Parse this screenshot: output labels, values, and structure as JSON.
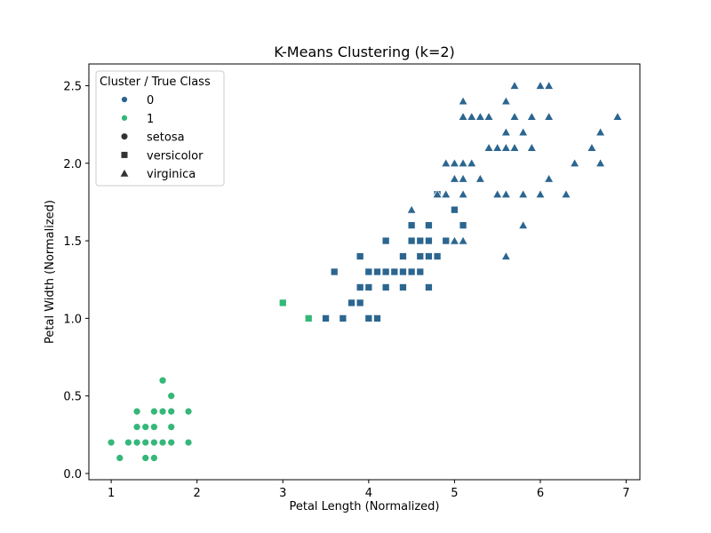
{
  "chart_data": {
    "type": "scatter",
    "title": "K-Means Clustering (k=2)",
    "xlabel": "Petal Length (Normalized)",
    "ylabel": "Petal Width (Normalized)",
    "xlim": [
      0.74,
      7.16
    ],
    "ylim": [
      -0.04,
      2.64
    ],
    "x_ticks": [
      1,
      2,
      3,
      4,
      5,
      6,
      7
    ],
    "y_ticks": [
      0.0,
      0.5,
      1.0,
      1.5,
      2.0,
      2.5
    ],
    "y_tick_labels": [
      "0.0",
      "0.5",
      "1.0",
      "1.5",
      "2.0",
      "2.5"
    ],
    "grid": false,
    "colors": {
      "cluster_0": "#2c6690",
      "cluster_1": "#35b779",
      "marker_key": "#333333"
    },
    "legend": {
      "title": "Cluster / True Class",
      "placement": "top-left",
      "entries": [
        {
          "label": "0",
          "kind": "hue",
          "cluster": 0
        },
        {
          "label": "1",
          "kind": "hue",
          "cluster": 1
        },
        {
          "label": "setosa",
          "kind": "marker",
          "marker": "circle"
        },
        {
          "label": "versicolor",
          "kind": "marker",
          "marker": "square"
        },
        {
          "label": "virginica",
          "kind": "marker",
          "marker": "triangle"
        }
      ]
    },
    "series": [
      {
        "class": "setosa",
        "cluster": 1,
        "marker": "circle",
        "points": [
          [
            1.0,
            0.2
          ],
          [
            1.1,
            0.1
          ],
          [
            1.2,
            0.2
          ],
          [
            1.3,
            0.2
          ],
          [
            1.3,
            0.3
          ],
          [
            1.3,
            0.4
          ],
          [
            1.4,
            0.1
          ],
          [
            1.4,
            0.2
          ],
          [
            1.4,
            0.3
          ],
          [
            1.5,
            0.1
          ],
          [
            1.5,
            0.2
          ],
          [
            1.5,
            0.3
          ],
          [
            1.5,
            0.4
          ],
          [
            1.6,
            0.2
          ],
          [
            1.6,
            0.4
          ],
          [
            1.6,
            0.6
          ],
          [
            1.7,
            0.2
          ],
          [
            1.7,
            0.3
          ],
          [
            1.7,
            0.4
          ],
          [
            1.7,
            0.5
          ],
          [
            1.9,
            0.2
          ],
          [
            1.9,
            0.4
          ]
        ]
      },
      {
        "class": "versicolor",
        "cluster": 1,
        "marker": "square",
        "points": [
          [
            3.0,
            1.1
          ],
          [
            3.3,
            1.0
          ]
        ]
      },
      {
        "class": "versicolor",
        "cluster": 0,
        "marker": "square",
        "points": [
          [
            3.5,
            1.0
          ],
          [
            3.6,
            1.3
          ],
          [
            3.7,
            1.0
          ],
          [
            3.8,
            1.1
          ],
          [
            3.9,
            1.1
          ],
          [
            3.9,
            1.2
          ],
          [
            3.9,
            1.4
          ],
          [
            4.0,
            1.0
          ],
          [
            4.0,
            1.2
          ],
          [
            4.0,
            1.3
          ],
          [
            4.1,
            1.0
          ],
          [
            4.1,
            1.3
          ],
          [
            4.2,
            1.2
          ],
          [
            4.2,
            1.3
          ],
          [
            4.2,
            1.5
          ],
          [
            4.3,
            1.3
          ],
          [
            4.4,
            1.2
          ],
          [
            4.4,
            1.3
          ],
          [
            4.4,
            1.4
          ],
          [
            4.5,
            1.3
          ],
          [
            4.5,
            1.5
          ],
          [
            4.5,
            1.6
          ],
          [
            4.6,
            1.3
          ],
          [
            4.6,
            1.4
          ],
          [
            4.6,
            1.5
          ],
          [
            4.7,
            1.2
          ],
          [
            4.7,
            1.4
          ],
          [
            4.7,
            1.5
          ],
          [
            4.7,
            1.6
          ],
          [
            4.8,
            1.4
          ],
          [
            4.8,
            1.8
          ],
          [
            4.9,
            1.5
          ],
          [
            5.0,
            1.7
          ],
          [
            5.1,
            1.6
          ]
        ]
      },
      {
        "class": "virginica",
        "cluster": 0,
        "marker": "triangle",
        "points": [
          [
            4.5,
            1.7
          ],
          [
            4.8,
            1.8
          ],
          [
            4.9,
            1.8
          ],
          [
            4.9,
            2.0
          ],
          [
            5.0,
            1.5
          ],
          [
            5.0,
            1.9
          ],
          [
            5.0,
            2.0
          ],
          [
            5.1,
            1.5
          ],
          [
            5.1,
            1.8
          ],
          [
            5.1,
            1.9
          ],
          [
            5.1,
            2.0
          ],
          [
            5.1,
            2.3
          ],
          [
            5.1,
            2.4
          ],
          [
            5.2,
            2.0
          ],
          [
            5.2,
            2.3
          ],
          [
            5.3,
            1.9
          ],
          [
            5.3,
            2.3
          ],
          [
            5.4,
            2.1
          ],
          [
            5.4,
            2.3
          ],
          [
            5.5,
            1.8
          ],
          [
            5.5,
            2.1
          ],
          [
            5.6,
            1.4
          ],
          [
            5.6,
            1.8
          ],
          [
            5.6,
            2.1
          ],
          [
            5.6,
            2.2
          ],
          [
            5.6,
            2.4
          ],
          [
            5.7,
            2.1
          ],
          [
            5.7,
            2.3
          ],
          [
            5.7,
            2.5
          ],
          [
            5.8,
            1.6
          ],
          [
            5.8,
            1.8
          ],
          [
            5.8,
            2.2
          ],
          [
            5.9,
            2.1
          ],
          [
            5.9,
            2.3
          ],
          [
            6.0,
            1.8
          ],
          [
            6.0,
            2.5
          ],
          [
            6.1,
            1.9
          ],
          [
            6.1,
            2.3
          ],
          [
            6.1,
            2.5
          ],
          [
            6.3,
            1.8
          ],
          [
            6.4,
            2.0
          ],
          [
            6.6,
            2.1
          ],
          [
            6.7,
            2.0
          ],
          [
            6.7,
            2.2
          ],
          [
            6.9,
            2.3
          ]
        ]
      }
    ]
  }
}
